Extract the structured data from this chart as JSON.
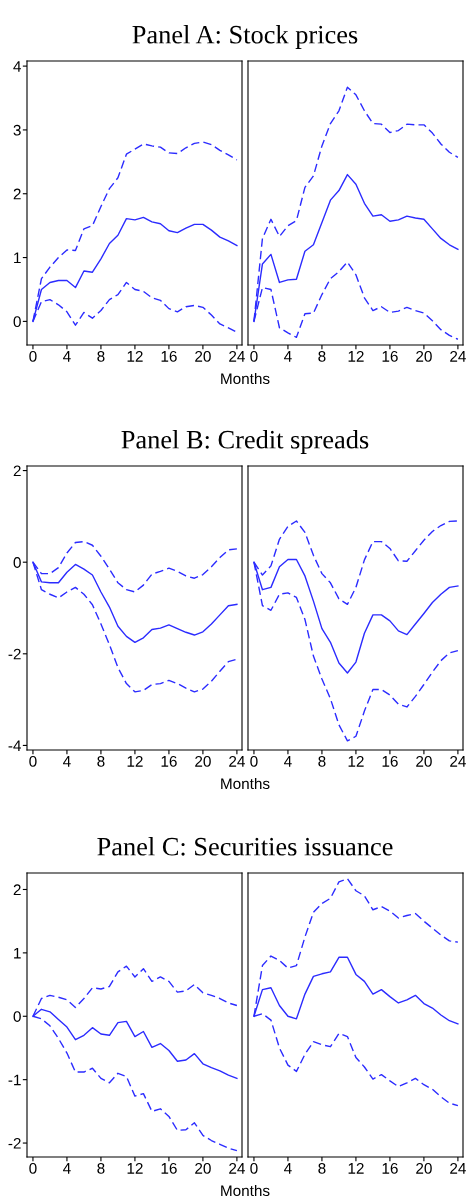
{
  "chart_data": [
    {
      "type": "line",
      "title": "Panel A: Stock prices",
      "xlabel": "Months",
      "x": [
        0,
        1,
        2,
        3,
        4,
        5,
        6,
        7,
        8,
        9,
        10,
        11,
        12,
        13,
        14,
        15,
        16,
        17,
        18,
        19,
        20,
        21,
        22,
        23,
        24
      ],
      "xlim": [
        -0.7,
        24.6
      ],
      "xticks": [
        0,
        4,
        8,
        12,
        16,
        20,
        24
      ],
      "ylim": [
        -0.37,
        4.08
      ],
      "yticks": [
        0,
        1,
        2,
        3,
        4
      ],
      "grid": false,
      "legend": false,
      "series": [
        {
          "color": "#2b2bff",
          "line_style": "dashed",
          "values": [
            0,
            0.67,
            0.85,
            1.0,
            1.12,
            1.11,
            1.45,
            1.5,
            1.8,
            2.08,
            2.25,
            2.62,
            2.7,
            2.78,
            2.75,
            2.73,
            2.64,
            2.63,
            2.72,
            2.79,
            2.81,
            2.77,
            2.68,
            2.61,
            2.53
          ]
        },
        {
          "color": "#2b2bff",
          "line_style": "solid",
          "values": [
            0,
            0.5,
            0.61,
            0.64,
            0.64,
            0.53,
            0.79,
            0.77,
            0.98,
            1.22,
            1.35,
            1.61,
            1.59,
            1.63,
            1.56,
            1.53,
            1.42,
            1.39,
            1.46,
            1.52,
            1.52,
            1.43,
            1.32,
            1.26,
            1.19
          ]
        },
        {
          "color": "#2b2bff",
          "line_style": "dashed",
          "values": [
            0,
            0.31,
            0.34,
            0.26,
            0.15,
            -0.06,
            0.14,
            0.05,
            0.17,
            0.34,
            0.42,
            0.61,
            0.5,
            0.47,
            0.37,
            0.33,
            0.2,
            0.15,
            0.23,
            0.25,
            0.22,
            0.1,
            -0.04,
            -0.1,
            -0.17
          ]
        }
      ]
    },
    {
      "type": "line",
      "x": [
        0,
        1,
        2,
        3,
        4,
        5,
        6,
        7,
        8,
        9,
        10,
        11,
        12,
        13,
        14,
        15,
        16,
        17,
        18,
        19,
        20,
        21,
        22,
        23,
        24
      ],
      "xlim": [
        -0.7,
        24.6
      ],
      "xticks": [
        0,
        4,
        8,
        12,
        16,
        20,
        24
      ],
      "ylim": [
        -0.37,
        4.08
      ],
      "tick_labels": "x",
      "grid": false,
      "legend": false,
      "series": [
        {
          "color": "#2b2bff",
          "line_style": "dashed",
          "values": [
            0,
            1.3,
            1.6,
            1.33,
            1.5,
            1.58,
            2.1,
            2.28,
            2.75,
            3.1,
            3.3,
            3.67,
            3.55,
            3.3,
            3.1,
            3.09,
            2.96,
            2.99,
            3.09,
            3.08,
            3.08,
            2.95,
            2.78,
            2.65,
            2.57
          ]
        },
        {
          "color": "#2b2bff",
          "line_style": "solid",
          "values": [
            0,
            0.9,
            1.05,
            0.61,
            0.65,
            0.66,
            1.1,
            1.2,
            1.55,
            1.9,
            2.05,
            2.3,
            2.15,
            1.85,
            1.65,
            1.67,
            1.57,
            1.59,
            1.65,
            1.62,
            1.6,
            1.45,
            1.3,
            1.2,
            1.13
          ]
        },
        {
          "color": "#2b2bff",
          "line_style": "dashed",
          "values": [
            0,
            0.53,
            0.5,
            -0.1,
            -0.18,
            -0.25,
            0.12,
            0.13,
            0.42,
            0.67,
            0.78,
            0.93,
            0.73,
            0.37,
            0.17,
            0.23,
            0.14,
            0.16,
            0.22,
            0.17,
            0.13,
            0.01,
            -0.13,
            -0.22,
            -0.28
          ]
        }
      ]
    },
    {
      "type": "line",
      "title": "Panel B: Credit spreads",
      "xlabel": "Months",
      "x": [
        0,
        1,
        2,
        3,
        4,
        5,
        6,
        7,
        8,
        9,
        10,
        11,
        12,
        13,
        14,
        15,
        16,
        17,
        18,
        19,
        20,
        21,
        22,
        23,
        24
      ],
      "xlim": [
        -0.7,
        24.6
      ],
      "xticks": [
        0,
        4,
        8,
        12,
        16,
        20,
        24
      ],
      "ylim": [
        -4.1,
        2.1
      ],
      "yticks": [
        -4,
        -2,
        0,
        2
      ],
      "grid": false,
      "legend": false,
      "series": [
        {
          "color": "#2b2bff",
          "line_style": "dashed",
          "values": [
            0,
            -0.25,
            -0.25,
            -0.12,
            0.2,
            0.43,
            0.45,
            0.37,
            0.13,
            -0.15,
            -0.45,
            -0.6,
            -0.65,
            -0.5,
            -0.26,
            -0.2,
            -0.13,
            -0.2,
            -0.3,
            -0.35,
            -0.27,
            -0.1,
            0.1,
            0.27,
            0.29
          ]
        },
        {
          "color": "#2b2bff",
          "line_style": "solid",
          "values": [
            0,
            -0.43,
            -0.45,
            -0.45,
            -0.22,
            -0.05,
            -0.15,
            -0.28,
            -0.65,
            -0.98,
            -1.4,
            -1.62,
            -1.75,
            -1.65,
            -1.47,
            -1.44,
            -1.37,
            -1.45,
            -1.53,
            -1.59,
            -1.52,
            -1.35,
            -1.15,
            -0.95,
            -0.92
          ]
        },
        {
          "color": "#2b2bff",
          "line_style": "dashed",
          "values": [
            0,
            -0.6,
            -0.7,
            -0.78,
            -0.65,
            -0.55,
            -0.7,
            -0.93,
            -1.35,
            -1.8,
            -2.3,
            -2.65,
            -2.83,
            -2.8,
            -2.67,
            -2.65,
            -2.58,
            -2.65,
            -2.75,
            -2.83,
            -2.77,
            -2.6,
            -2.38,
            -2.17,
            -2.12
          ]
        }
      ]
    },
    {
      "type": "line",
      "x": [
        0,
        1,
        2,
        3,
        4,
        5,
        6,
        7,
        8,
        9,
        10,
        11,
        12,
        13,
        14,
        15,
        16,
        17,
        18,
        19,
        20,
        21,
        22,
        23,
        24
      ],
      "xlim": [
        -0.7,
        24.6
      ],
      "xticks": [
        0,
        4,
        8,
        12,
        16,
        20,
        24
      ],
      "ylim": [
        -4.1,
        2.1
      ],
      "tick_labels": "x",
      "grid": false,
      "legend": false,
      "series": [
        {
          "color": "#2b2bff",
          "line_style": "dashed",
          "values": [
            0,
            -0.28,
            -0.08,
            0.5,
            0.78,
            0.9,
            0.65,
            0.15,
            -0.25,
            -0.45,
            -0.8,
            -0.92,
            -0.55,
            0.05,
            0.45,
            0.45,
            0.3,
            0.03,
            0.02,
            0.25,
            0.48,
            0.67,
            0.8,
            0.89,
            0.9
          ]
        },
        {
          "color": "#2b2bff",
          "line_style": "solid",
          "values": [
            0,
            -0.6,
            -0.55,
            -0.1,
            0.06,
            0.06,
            -0.3,
            -0.85,
            -1.45,
            -1.75,
            -2.2,
            -2.42,
            -2.18,
            -1.55,
            -1.15,
            -1.15,
            -1.28,
            -1.5,
            -1.58,
            -1.35,
            -1.12,
            -0.88,
            -0.7,
            -0.55,
            -0.52
          ]
        },
        {
          "color": "#2b2bff",
          "line_style": "dashed",
          "values": [
            0,
            -0.95,
            -1.05,
            -0.7,
            -0.67,
            -0.77,
            -1.25,
            -2.05,
            -2.55,
            -2.98,
            -3.55,
            -3.9,
            -3.8,
            -3.25,
            -2.78,
            -2.78,
            -2.9,
            -3.1,
            -3.16,
            -2.93,
            -2.67,
            -2.4,
            -2.15,
            -1.98,
            -1.93
          ]
        }
      ]
    },
    {
      "type": "line",
      "title": "Panel C: Securities issuance",
      "xlabel": "Months",
      "x": [
        0,
        1,
        2,
        3,
        4,
        5,
        6,
        7,
        8,
        9,
        10,
        11,
        12,
        13,
        14,
        15,
        16,
        17,
        18,
        19,
        20,
        21,
        22,
        23,
        24
      ],
      "xlim": [
        -0.7,
        24.6
      ],
      "xticks": [
        0,
        4,
        8,
        12,
        16,
        20,
        24
      ],
      "ylim": [
        -2.22,
        2.26
      ],
      "yticks": [
        -2,
        -1,
        0,
        1,
        2
      ],
      "grid": false,
      "legend": false,
      "series": [
        {
          "color": "#2b2bff",
          "line_style": "dashed",
          "values": [
            0,
            0.28,
            0.33,
            0.3,
            0.26,
            0.14,
            0.28,
            0.45,
            0.43,
            0.47,
            0.7,
            0.79,
            0.62,
            0.75,
            0.55,
            0.62,
            0.55,
            0.38,
            0.4,
            0.5,
            0.37,
            0.33,
            0.28,
            0.21,
            0.17
          ]
        },
        {
          "color": "#2b2bff",
          "line_style": "solid",
          "values": [
            0,
            0.11,
            0.07,
            -0.05,
            -0.17,
            -0.37,
            -0.3,
            -0.18,
            -0.28,
            -0.3,
            -0.1,
            -0.08,
            -0.32,
            -0.24,
            -0.49,
            -0.43,
            -0.54,
            -0.71,
            -0.69,
            -0.59,
            -0.75,
            -0.81,
            -0.86,
            -0.93,
            -0.98
          ]
        },
        {
          "color": "#2b2bff",
          "line_style": "dashed",
          "values": [
            0,
            -0.04,
            -0.15,
            -0.35,
            -0.58,
            -0.88,
            -0.88,
            -0.82,
            -0.98,
            -1.05,
            -0.9,
            -0.95,
            -1.26,
            -1.22,
            -1.5,
            -1.46,
            -1.58,
            -1.8,
            -1.79,
            -1.68,
            -1.88,
            -1.96,
            -2.02,
            -2.08,
            -2.12
          ]
        }
      ]
    },
    {
      "type": "line",
      "x": [
        0,
        1,
        2,
        3,
        4,
        5,
        6,
        7,
        8,
        9,
        10,
        11,
        12,
        13,
        14,
        15,
        16,
        17,
        18,
        19,
        20,
        21,
        22,
        23,
        24
      ],
      "xlim": [
        -0.7,
        24.6
      ],
      "xticks": [
        0,
        4,
        8,
        12,
        16,
        20,
        24
      ],
      "ylim": [
        -2.22,
        2.26
      ],
      "tick_labels": "x",
      "grid": false,
      "legend": false,
      "series": [
        {
          "color": "#2b2bff",
          "line_style": "dashed",
          "values": [
            0,
            0.8,
            0.95,
            0.88,
            0.76,
            0.8,
            1.25,
            1.64,
            1.78,
            1.86,
            2.12,
            2.17,
            1.98,
            1.9,
            1.68,
            1.73,
            1.66,
            1.55,
            1.59,
            1.62,
            1.5,
            1.39,
            1.28,
            1.19,
            1.17
          ]
        },
        {
          "color": "#2b2bff",
          "line_style": "solid",
          "values": [
            0,
            0.42,
            0.45,
            0.17,
            0.0,
            -0.04,
            0.35,
            0.63,
            0.67,
            0.7,
            0.93,
            0.93,
            0.66,
            0.55,
            0.35,
            0.42,
            0.31,
            0.21,
            0.26,
            0.33,
            0.2,
            0.13,
            0.02,
            -0.07,
            -0.12
          ]
        },
        {
          "color": "#2b2bff",
          "line_style": "dashed",
          "values": [
            0,
            0.04,
            -0.06,
            -0.5,
            -0.77,
            -0.87,
            -0.6,
            -0.4,
            -0.45,
            -0.48,
            -0.27,
            -0.32,
            -0.65,
            -0.8,
            -0.99,
            -0.92,
            -1.02,
            -1.11,
            -1.05,
            -0.98,
            -1.08,
            -1.15,
            -1.27,
            -1.37,
            -1.41
          ]
        }
      ]
    }
  ]
}
